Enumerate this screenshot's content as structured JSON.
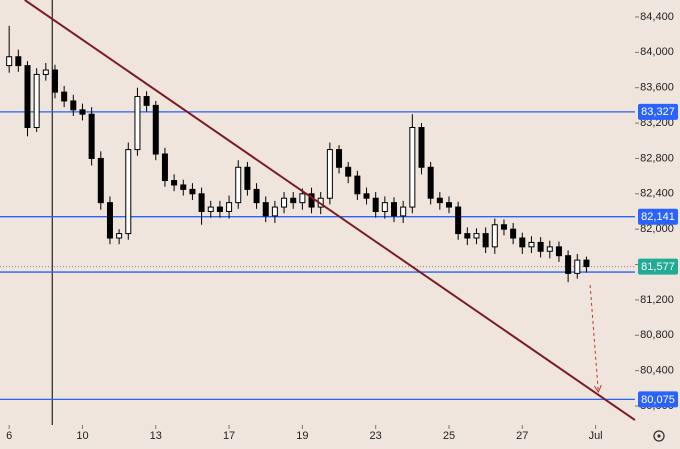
{
  "chart_data": {
    "type": "candlestick",
    "xlim": [
      -1,
      68.3
    ],
    "ylim": [
      79785,
      84592
    ],
    "xticks": [
      {
        "value": 0,
        "label": "6"
      },
      {
        "value": 8,
        "label": "10"
      },
      {
        "value": 16,
        "label": "13"
      },
      {
        "value": 24,
        "label": "17"
      },
      {
        "value": 32,
        "label": "19"
      },
      {
        "value": 40,
        "label": "23"
      },
      {
        "value": 48,
        "label": "25"
      },
      {
        "value": 56,
        "label": "27"
      },
      {
        "value": 64,
        "label": "Jul"
      }
    ],
    "yticks": [
      {
        "value": 84400,
        "label": "84,400"
      },
      {
        "value": 84000,
        "label": "84,000"
      },
      {
        "value": 83600,
        "label": "83,600"
      },
      {
        "value": 83200,
        "label": "83,200"
      },
      {
        "value": 82800,
        "label": "82,800"
      },
      {
        "value": 82400,
        "label": "82,400"
      },
      {
        "value": 82000,
        "label": "82,000"
      },
      {
        "value": 81600,
        "label": "81,600"
      },
      {
        "value": 81200,
        "label": "81,200"
      },
      {
        "value": 80800,
        "label": "80,800"
      },
      {
        "value": 80400,
        "label": "80,400"
      },
      {
        "value": 80000,
        "label": "80,000"
      }
    ],
    "color": "#000000",
    "open": [
      83850,
      83950,
      83850,
      83150,
      83750,
      83800,
      83550,
      83450,
      83350,
      83300,
      82800,
      82300,
      81900,
      81950,
      82900,
      83500,
      83400,
      82850,
      82550,
      82500,
      82450,
      82400,
      82200,
      82250,
      82200,
      82300,
      82700,
      82450,
      82300,
      82150,
      82250,
      82350,
      82300,
      82400,
      82250,
      82350,
      82900,
      82700,
      82600,
      82400,
      82350,
      82200,
      82300,
      82150,
      82250,
      83150,
      82700,
      82350,
      82300,
      82250,
      81950,
      81900,
      81950,
      81800,
      82050,
      82000,
      81900,
      81800,
      81850,
      81750,
      81800,
      81700,
      81500,
      81650
    ],
    "high": [
      84300,
      84030,
      83900,
      83820,
      83880,
      83860,
      83620,
      83520,
      83420,
      83380,
      82880,
      82370,
      82000,
      82980,
      83600,
      83560,
      83450,
      82920,
      82620,
      82560,
      82520,
      82470,
      82320,
      82320,
      82380,
      82780,
      82760,
      82520,
      82370,
      82320,
      82420,
      82420,
      82460,
      82470,
      82420,
      82980,
      82950,
      82760,
      82660,
      82470,
      82420,
      82370,
      82360,
      82320,
      83300,
      83200,
      82760,
      82420,
      82370,
      82310,
      82020,
      82010,
      82020,
      82120,
      82110,
      82070,
      81960,
      81920,
      81910,
      81870,
      81860,
      81760,
      81720,
      81690
    ],
    "low": [
      83770,
      83780,
      83050,
      83100,
      83680,
      83480,
      83380,
      83280,
      83230,
      82720,
      82220,
      81830,
      81830,
      81880,
      82830,
      83330,
      82780,
      82480,
      82430,
      82380,
      82330,
      82050,
      82130,
      82130,
      82120,
      82230,
      82380,
      82230,
      82080,
      82070,
      82180,
      82230,
      82220,
      82180,
      82170,
      82280,
      82630,
      82520,
      82330,
      82280,
      82130,
      82120,
      82080,
      82070,
      82180,
      82620,
      82280,
      82220,
      82180,
      81880,
      81820,
      81830,
      81730,
      81720,
      81930,
      81830,
      81720,
      81730,
      81680,
      81670,
      81630,
      81400,
      81440,
      81510
    ],
    "close": [
      83950,
      83850,
      83150,
      83750,
      83800,
      83550,
      83450,
      83350,
      83300,
      82800,
      82300,
      81900,
      81950,
      82900,
      83500,
      83400,
      82850,
      82550,
      82500,
      82450,
      82400,
      82200,
      82250,
      82200,
      82300,
      82700,
      82450,
      82300,
      82150,
      82250,
      82350,
      82300,
      82400,
      82250,
      82350,
      82900,
      82700,
      82600,
      82400,
      82350,
      82200,
      82300,
      82150,
      82250,
      83150,
      82700,
      82350,
      82300,
      82250,
      81950,
      81900,
      81950,
      81800,
      82050,
      82000,
      81900,
      81800,
      81850,
      81750,
      81800,
      81700,
      81500,
      81650,
      81577
    ],
    "levels": [
      {
        "value": 83327,
        "label": "83,327",
        "color": "#2962ff"
      },
      {
        "value": 82141,
        "label": "82,141",
        "color": "#2962ff"
      },
      {
        "value": 81515,
        "color": "#2962ff"
      },
      {
        "value": 81577,
        "label": "81,577",
        "color": "#22ab94"
      },
      {
        "value": 80075,
        "label": "80,075",
        "color": "#2962ff"
      }
    ],
    "trendline": {
      "x": [
        1.7,
        68.3
      ],
      "y": [
        84592,
        79841
      ],
      "color": "#7b1c24"
    },
    "vline": {
      "x": 4.7,
      "color": "#000000"
    },
    "projection": {
      "x": [
        63.4,
        64.3
      ],
      "y": [
        81368,
        80158
      ],
      "color": "#c0392b"
    }
  }
}
